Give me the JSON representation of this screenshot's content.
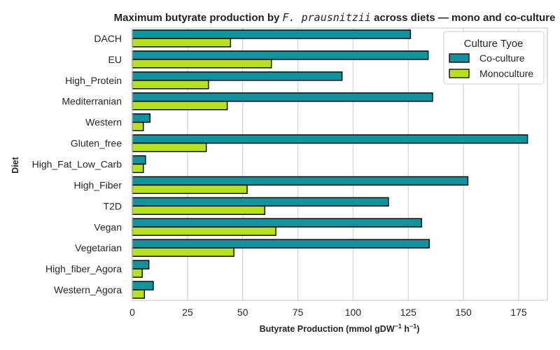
{
  "chart_data": {
    "type": "bar",
    "orientation": "horizontal",
    "title_prefix": "Maximum butyrate production by ",
    "title_italic": "F. prausnitzii",
    "title_suffix": " across diets — mono and co-culture",
    "xlabel_prefix": "Butyrate Production (mmol gDW",
    "xlabel_sup1": "−1",
    "xlabel_mid": " h",
    "xlabel_sup2": "−1",
    "xlabel_suffix": ")",
    "ylabel": "Diet",
    "xlim": [
      0,
      188
    ],
    "xticks": [
      0,
      25,
      50,
      75,
      100,
      125,
      150,
      175
    ],
    "grid": true,
    "legend": {
      "title": "Culture Tyoe",
      "position": "top-right"
    },
    "categories": [
      "DACH",
      "EU",
      "High_Protein",
      "Mediterranian",
      "Western",
      "Gluten_free",
      "High_Fat_Low_Carb",
      "High_Fiber",
      "T2D",
      "Vegan",
      "Vegetarian",
      "High_fiber_Agora",
      "Western_Agora"
    ],
    "series": [
      {
        "name": "Co-culture",
        "color": "#13939e",
        "values": [
          126,
          134,
          95,
          136,
          8,
          179,
          6,
          152,
          116,
          131,
          134.5,
          7.5,
          9.5
        ]
      },
      {
        "name": "Monoculture",
        "color": "#b7e11c",
        "values": [
          44.5,
          63,
          34.5,
          43,
          5,
          33.5,
          5,
          52,
          60,
          65,
          46,
          4.5,
          5.5
        ]
      }
    ]
  }
}
